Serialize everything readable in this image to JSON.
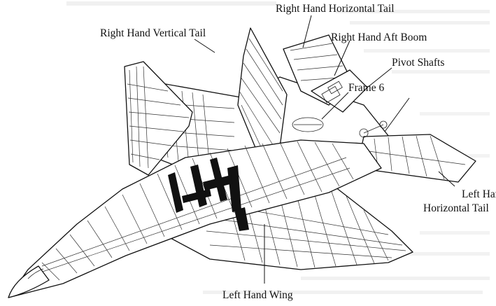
{
  "labels": {
    "right_horizontal_tail": "Right Hand Horizontal Tail",
    "right_vertical_tail": "Right Hand Vertical Tail",
    "right_aft_boom": "Right Hand Aft Boom",
    "pivot_shafts": "Pivot Shafts",
    "frame_6": "Frame 6",
    "left_horizontal_tail_line1": "Left Hand",
    "left_horizontal_tail_line2": "Horizontal Tail",
    "left_wing": "Left Hand Wing"
  },
  "colors": {
    "ink": "#111111",
    "paper": "#ffffff"
  }
}
